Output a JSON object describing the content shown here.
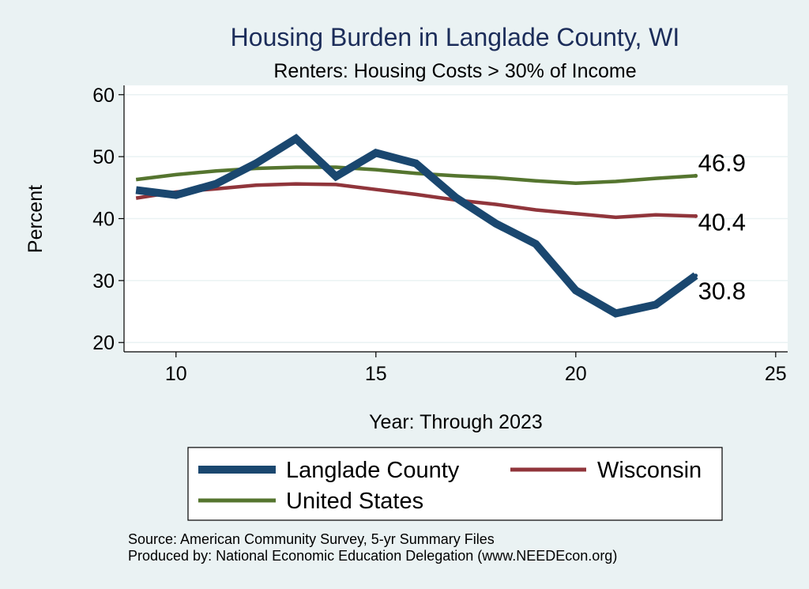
{
  "chart_data": {
    "type": "line",
    "title": "Housing Burden in Langlade County, WI",
    "subtitle": "Renters: Housing Costs > 30% of Income",
    "xlabel": "Year: Through 2023",
    "ylabel": "Percent",
    "xlim": [
      8.7,
      25.3
    ],
    "ylim": [
      18.5,
      61.5
    ],
    "xticks": [
      10,
      15,
      20,
      25
    ],
    "yticks": [
      20,
      30,
      40,
      50,
      60
    ],
    "grid": true,
    "x": [
      9,
      10,
      11,
      12,
      13,
      14,
      15,
      16,
      17,
      18,
      19,
      20,
      21,
      22,
      23
    ],
    "series": [
      {
        "name": "Langlade County",
        "color": "#1a476f",
        "values": [
          44.6,
          43.8,
          45.6,
          48.9,
          52.9,
          46.8,
          50.6,
          48.9,
          43.4,
          39.2,
          35.9,
          28.4,
          24.7,
          26.1,
          30.8
        ],
        "end_label": "30.8"
      },
      {
        "name": "Wisconsin",
        "color": "#90353b",
        "values": [
          43.3,
          44.3,
          44.8,
          45.4,
          45.6,
          45.5,
          44.7,
          43.9,
          43.0,
          42.3,
          41.4,
          40.8,
          40.2,
          40.6,
          40.4
        ],
        "end_label": "40.4"
      },
      {
        "name": "United States",
        "color": "#55752f",
        "values": [
          46.3,
          47.1,
          47.7,
          48.1,
          48.3,
          48.3,
          47.9,
          47.3,
          46.9,
          46.6,
          46.1,
          45.7,
          46.0,
          46.5,
          46.9
        ],
        "end_label": "46.9"
      }
    ],
    "legend": {
      "position": "bottom",
      "entries": [
        "Langlade County",
        "Wisconsin",
        "United States"
      ]
    },
    "notes": [
      "Source: American Community Survey, 5-yr Summary Files",
      "Produced by: National Economic Education Delegation (www.NEEDEcon.org)"
    ]
  }
}
